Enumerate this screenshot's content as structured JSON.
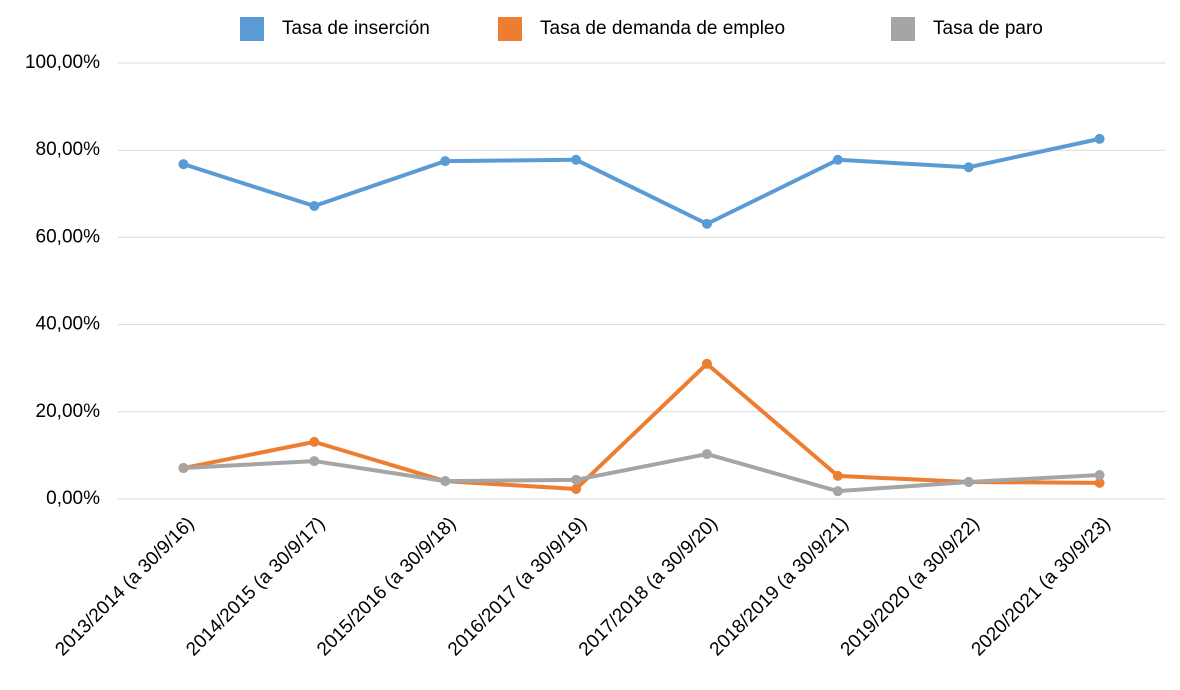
{
  "chart_data": {
    "type": "line",
    "categories": [
      "2013/2014 (a 30/9/16)",
      "2014/2015 (a 30/9/17)",
      "2015/2016 (a 30/9/18)",
      "2016/2017 (a 30/9/19)",
      "2017/2018 (a 30/9/20)",
      "2018/2019 (a 30/9/21)",
      "2019/2020 (a 30/9/22)",
      "2020/2021 (a 30/9/23)"
    ],
    "series": [
      {
        "name": "Tasa de inserción",
        "color": "#5b9bd5",
        "values": [
          76.8,
          67.2,
          77.5,
          77.8,
          63.1,
          77.8,
          76.1,
          82.6
        ]
      },
      {
        "name": "Tasa de demanda de empleo",
        "color": "#ed7d31",
        "values": [
          7.1,
          13.1,
          4.1,
          2.3,
          31.0,
          5.3,
          3.9,
          3.7
        ]
      },
      {
        "name": "Tasa de paro",
        "color": "#a5a5a5",
        "values": [
          7.1,
          8.7,
          4.1,
          4.4,
          10.3,
          1.8,
          3.9,
          5.5
        ]
      }
    ],
    "ylim": [
      0,
      100
    ],
    "yticks": [
      {
        "value": 0,
        "label": "0,00%"
      },
      {
        "value": 20,
        "label": "20,00%"
      },
      {
        "value": 40,
        "label": "40,00%"
      },
      {
        "value": 60,
        "label": "60,00%"
      },
      {
        "value": 80,
        "label": "80,00%"
      },
      {
        "value": 100,
        "label": "100,00%"
      }
    ],
    "grid": true,
    "legend": "top"
  }
}
